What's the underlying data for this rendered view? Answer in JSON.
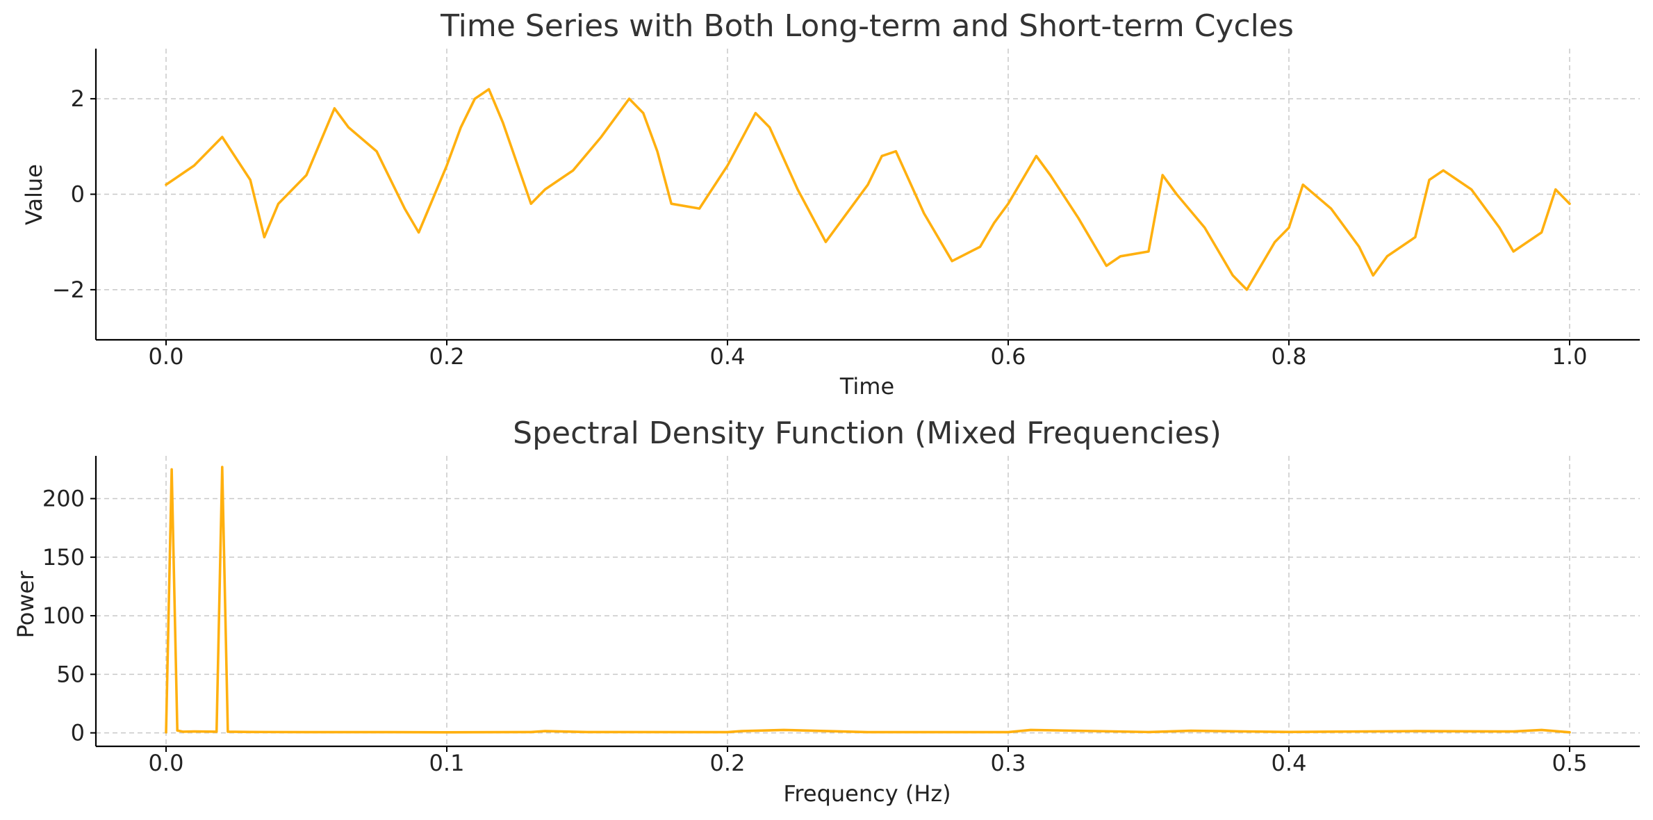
{
  "chart_data": [
    {
      "type": "line",
      "title": "Time Series with Both Long-term and Short-term Cycles",
      "xlabel": "Time",
      "ylabel": "Value",
      "xlim": [
        -0.05,
        1.05
      ],
      "ylim": [
        -3.05,
        3.05
      ],
      "grid": true,
      "color": "#ffb00f",
      "xticks": [
        0.0,
        0.2,
        0.4,
        0.6,
        0.8,
        1.0
      ],
      "xtick_labels": [
        "0.0",
        "0.2",
        "0.4",
        "0.6",
        "0.8",
        "1.0"
      ],
      "yticks": [
        -2,
        0,
        2
      ],
      "ytick_labels": [
        "−2",
        "0",
        "2"
      ],
      "series": [
        {
          "x": [
            0.0,
            0.02,
            0.04,
            0.06,
            0.07,
            0.08,
            0.1,
            0.12,
            0.13,
            0.15,
            0.17,
            0.18,
            0.2,
            0.21,
            0.22,
            0.23,
            0.24,
            0.26,
            0.27,
            0.29,
            0.31,
            0.33,
            0.34,
            0.35,
            0.36,
            0.38,
            0.4,
            0.42,
            0.43,
            0.45,
            0.47,
            0.48,
            0.5,
            0.51,
            0.52,
            0.54,
            0.56,
            0.58,
            0.59,
            0.6,
            0.62,
            0.63,
            0.65,
            0.67,
            0.68,
            0.7,
            0.71,
            0.72,
            0.74,
            0.76,
            0.77,
            0.79,
            0.8,
            0.81,
            0.83,
            0.85,
            0.86,
            0.87,
            0.89,
            0.9,
            0.91,
            0.93,
            0.95,
            0.96,
            0.98,
            0.99,
            1.0
          ],
          "y": [
            0.2,
            0.6,
            1.2,
            0.3,
            -0.9,
            -0.2,
            0.4,
            1.8,
            1.4,
            0.9,
            -0.3,
            -0.8,
            0.6,
            1.4,
            2.0,
            2.2,
            1.5,
            -0.2,
            0.1,
            0.5,
            1.2,
            2.0,
            1.7,
            0.9,
            -0.2,
            -0.3,
            0.6,
            1.7,
            1.4,
            0.1,
            -1.0,
            -0.6,
            0.2,
            0.8,
            0.9,
            -0.4,
            -1.4,
            -1.1,
            -0.6,
            -0.2,
            0.8,
            0.4,
            -0.5,
            -1.5,
            -1.3,
            -1.2,
            0.4,
            0.0,
            -0.7,
            -1.7,
            -2.0,
            -1.0,
            -0.7,
            0.2,
            -0.3,
            -1.1,
            -1.7,
            -1.3,
            -0.9,
            0.3,
            0.5,
            0.1,
            -0.7,
            -1.2,
            -0.8,
            0.1,
            -0.2
          ]
        }
      ]
    },
    {
      "type": "line",
      "title": "Spectral Density Function (Mixed Frequencies)",
      "xlabel": "Frequency (Hz)",
      "ylabel": "Power",
      "xlim": [
        -0.025,
        0.525
      ],
      "ylim": [
        -11.5,
        236.5
      ],
      "grid": true,
      "color": "#ffb00f",
      "xticks": [
        0.0,
        0.1,
        0.2,
        0.3,
        0.4,
        0.5
      ],
      "xtick_labels": [
        "0.0",
        "0.1",
        "0.2",
        "0.3",
        "0.4",
        "0.5"
      ],
      "yticks": [
        0,
        50,
        100,
        150,
        200
      ],
      "ytick_labels": [
        "0",
        "50",
        "100",
        "150",
        "200"
      ],
      "series": [
        {
          "x": [
            0.0,
            0.002,
            0.004,
            0.006,
            0.01,
            0.018,
            0.02,
            0.022,
            0.03,
            0.05,
            0.08,
            0.1,
            0.13,
            0.135,
            0.15,
            0.2,
            0.205,
            0.22,
            0.25,
            0.3,
            0.308,
            0.35,
            0.365,
            0.4,
            0.445,
            0.48,
            0.49,
            0.5
          ],
          "y": [
            0.5,
            225,
            2,
            1,
            1.2,
            1,
            227,
            1,
            0.8,
            0.6,
            0.6,
            0.5,
            0.7,
            1.5,
            0.7,
            0.6,
            1.5,
            2.5,
            0.6,
            0.6,
            2.5,
            0.7,
            1.8,
            0.8,
            1.5,
            1.2,
            2.5,
            0.5
          ]
        }
      ]
    }
  ]
}
